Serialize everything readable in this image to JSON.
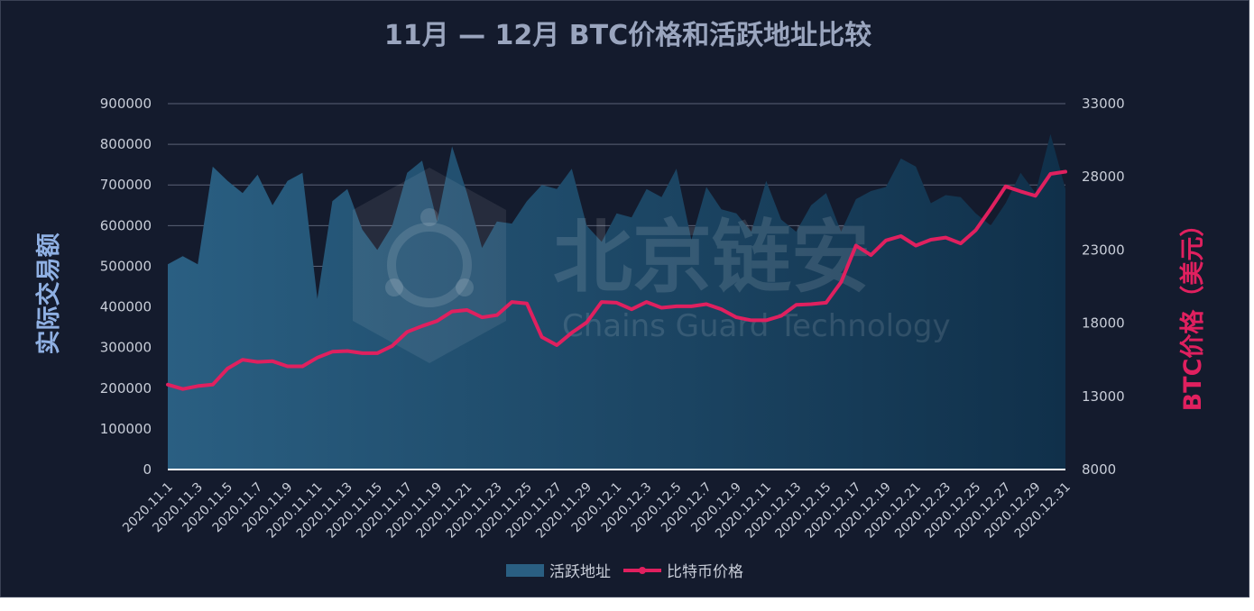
{
  "chart_data": {
    "type": "area+line",
    "title": "11月 — 12月 BTC价格和活跃地址比较",
    "ylabel_left": "实际交易额",
    "ylabel_right": "BTC价格（美元）",
    "ylim_left": [
      0,
      900000
    ],
    "ylim_right": [
      8000,
      33000
    ],
    "yticks_left": [
      "0",
      "100000",
      "200000",
      "300000",
      "400000",
      "500000",
      "600000",
      "700000",
      "800000",
      "900000"
    ],
    "yticks_right": [
      "8000",
      "13000",
      "18000",
      "23000",
      "28000",
      "33000"
    ],
    "grid": true,
    "legend_position": "bottom-center",
    "categories": [
      "2020.11.1",
      "2020.11.2",
      "2020.11.3",
      "2020.11.4",
      "2020.11.5",
      "2020.11.6",
      "2020.11.7",
      "2020.11.8",
      "2020.11.9",
      "2020.11.10",
      "2020.11.11",
      "2020.11.12",
      "2020.11.13",
      "2020.11.14",
      "2020.11.15",
      "2020.11.16",
      "2020.11.17",
      "2020.11.18",
      "2020.11.19",
      "2020.11.20",
      "2020.11.21",
      "2020.11.22",
      "2020.11.23",
      "2020.11.24",
      "2020.11.25",
      "2020.11.26",
      "2020.11.27",
      "2020.11.28",
      "2020.11.29",
      "2020.11.30",
      "2020.12.1",
      "2020.12.2",
      "2020.12.3",
      "2020.12.4",
      "2020.12.5",
      "2020.12.6",
      "2020.12.7",
      "2020.12.8",
      "2020.12.9",
      "2020.12.10",
      "2020.12.11",
      "2020.12.12",
      "2020.12.13",
      "2020.12.14",
      "2020.12.15",
      "2020.12.16",
      "2020.12.17",
      "2020.12.18",
      "2020.12.19",
      "2020.12.20",
      "2020.12.21",
      "2020.12.22",
      "2020.12.23",
      "2020.12.24",
      "2020.12.25",
      "2020.12.26",
      "2020.12.27",
      "2020.12.28",
      "2020.12.29",
      "2020.12.30",
      "2020.12.31"
    ],
    "x_tick_labels": [
      "2020.11.1",
      "2020.11.3",
      "2020.11.5",
      "2020.11.7",
      "2020.11.9",
      "2020.11.11",
      "2020.11.13",
      "2020.11.15",
      "2020.11.17",
      "2020.11.19",
      "2020.11.21",
      "2020.11.23",
      "2020.11.25",
      "2020.11.27",
      "2020.11.29",
      "2020.12.1",
      "2020.12.3",
      "2020.12.5",
      "2020.12.7",
      "2020.12.9",
      "2020.12.11",
      "2020.12.13",
      "2020.12.15",
      "2020.12.17",
      "2020.12.19",
      "2020.12.21",
      "2020.12.23",
      "2020.12.25",
      "2020.12.27",
      "2020.12.29",
      "2020.12.31"
    ],
    "series": [
      {
        "name": "活跃地址",
        "type": "area",
        "axis": "left",
        "color": "#2a5f82",
        "values": [
          505000,
          525000,
          505000,
          745000,
          710000,
          680000,
          725000,
          650000,
          710000,
          730000,
          420000,
          660000,
          690000,
          590000,
          540000,
          600000,
          730000,
          760000,
          610000,
          795000,
          680000,
          545000,
          610000,
          605000,
          660000,
          700000,
          690000,
          740000,
          600000,
          560000,
          630000,
          620000,
          690000,
          670000,
          740000,
          565000,
          695000,
          640000,
          630000,
          585000,
          710000,
          615000,
          585000,
          650000,
          680000,
          585000,
          665000,
          685000,
          695000,
          765000,
          745000,
          655000,
          675000,
          670000,
          630000,
          600000,
          655000,
          730000,
          680000,
          825000,
          690000
        ]
      },
      {
        "name": "比特币价格",
        "type": "line",
        "axis": "right",
        "color": "#e0205f",
        "values": [
          13800,
          13500,
          13700,
          13800,
          14900,
          15500,
          15350,
          15400,
          15050,
          15050,
          15650,
          16050,
          16100,
          15950,
          15950,
          16450,
          17400,
          17800,
          18150,
          18800,
          18900,
          18400,
          18550,
          19450,
          19350,
          17050,
          16500,
          17350,
          18050,
          19450,
          19400,
          18950,
          19450,
          19050,
          19150,
          19150,
          19300,
          18950,
          18400,
          18200,
          18200,
          18500,
          19250,
          19300,
          19400,
          20800,
          23300,
          22650,
          23650,
          23950,
          23300,
          23700,
          23850,
          23450,
          24350,
          25800,
          27350,
          27000,
          26700,
          28200,
          28350
        ]
      }
    ]
  },
  "watermark": {
    "cn": "北京链安",
    "en": "Chains Guard Technology"
  },
  "colors": {
    "background": "#141b2d",
    "area_top": "#2a5f82",
    "area_bottom": "#10304a",
    "line": "#e0205f",
    "grid": "#5a6276"
  }
}
